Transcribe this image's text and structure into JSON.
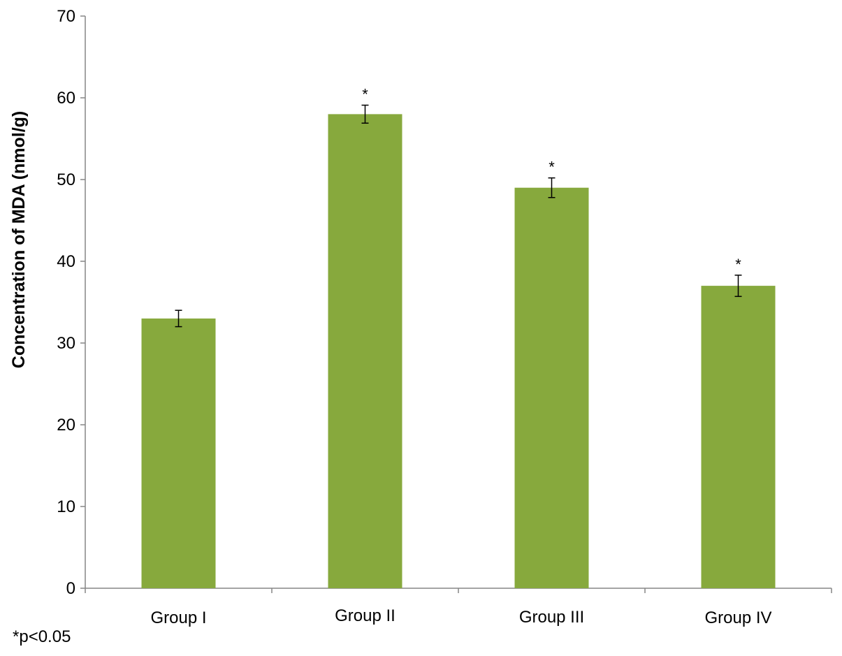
{
  "chart_data": {
    "type": "bar",
    "categories": [
      "Group I",
      "Group II",
      "Group III",
      "Group IV"
    ],
    "values": [
      33,
      58,
      49,
      37
    ],
    "error": [
      1.0,
      1.1,
      1.2,
      1.3
    ],
    "significance": [
      "",
      "*",
      "*",
      "*"
    ],
    "ylabel": "Concentration of MDA (nmol/g)",
    "xlabel": "",
    "ylim": [
      0,
      70
    ],
    "yticks": [
      0,
      10,
      20,
      30,
      40,
      50,
      60,
      70
    ],
    "grid": false,
    "bar_color": "#87A93D",
    "footnote": "*p<0.05"
  }
}
